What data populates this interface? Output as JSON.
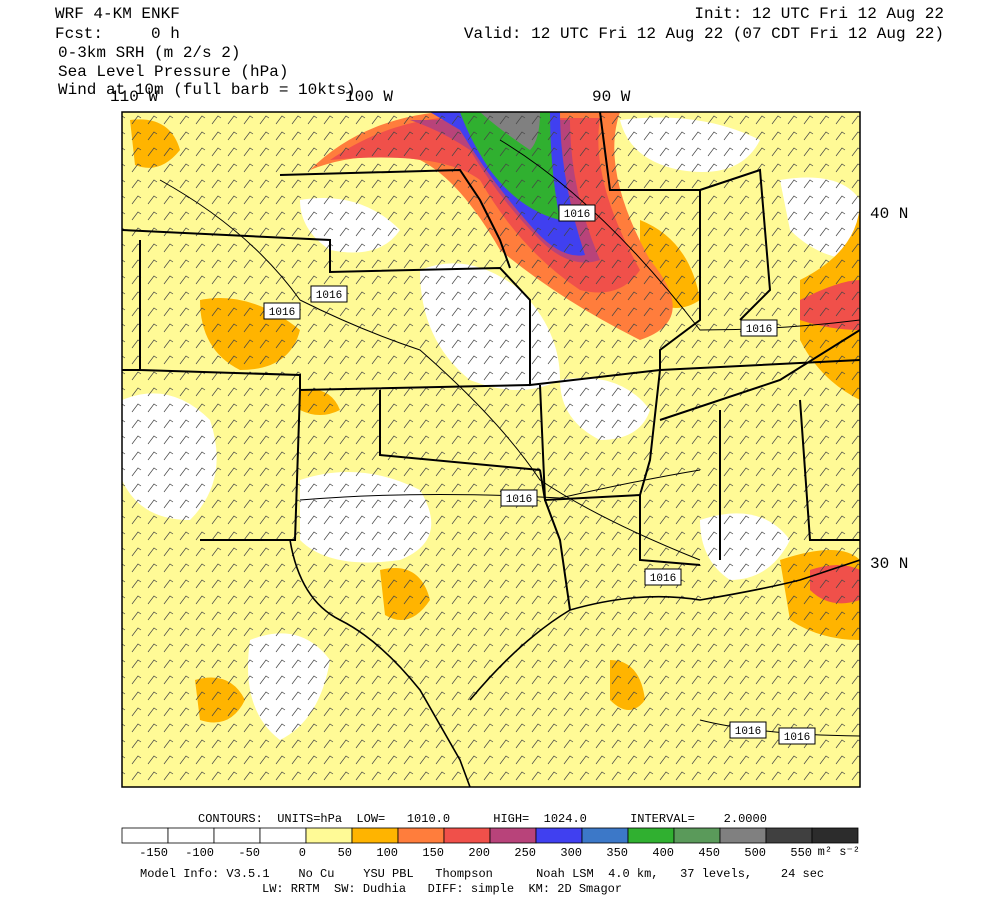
{
  "header": {
    "model": "WRF 4-KM ENKF",
    "forecast": "Fcst:     0 h",
    "field1": "0-3km SRH (m 2/s 2)",
    "field2": "Sea Level Pressure (hPa)",
    "field3": "Wind at 10m (full barb = 10kts)",
    "init": "Init: 12 UTC Fri 12 Aug 22",
    "valid": "Valid: 12 UTC Fri 12 Aug 22 (07 CDT Fri 12 Aug 22)"
  },
  "map": {
    "lon_labels": [
      "110 W",
      "100 W",
      "90 W"
    ],
    "lat_labels": [
      "40 N",
      "30 N"
    ],
    "contour_labels": [
      "1016",
      "1016",
      "1016",
      "1016",
      "1016",
      "1016",
      "1016",
      "1016"
    ]
  },
  "legend": {
    "contours": "CONTOURS:  UNITS=hPa  LOW=   1010.0      HIGH=  1024.0      INTERVAL=    2.0000",
    "colors": [
      "#ffffff",
      "#ffffff",
      "#ffffff",
      "#ffffff",
      "#fffa96",
      "#ffb400",
      "#ff7d3c",
      "#f0504a",
      "#b8437a",
      "#4040f0",
      "#3c78c8",
      "#30b030",
      "#5a9a5a",
      "#808080",
      "#404040",
      "#2c2c2c"
    ],
    "labels": [
      "-150",
      "-100",
      "-50",
      "0",
      "50",
      "100",
      "150",
      "200",
      "250",
      "300",
      "350",
      "400",
      "450",
      "500",
      "550"
    ],
    "units": "m² s⁻²"
  },
  "footer": {
    "line1": "Model Info: V3.5.1    No Cu    YSU PBL   Thompson      Noah LSM  4.0 km,   37 levels,    24 sec",
    "line2": "LW: RRTM  SW: Dudhia   DIFF: simple  KM: 2D Smagor"
  }
}
